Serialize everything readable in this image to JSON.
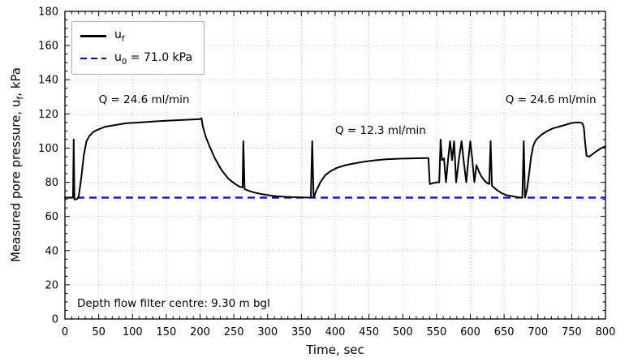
{
  "chart_data": {
    "type": "line",
    "title": "",
    "xlabel": "Time, sec",
    "ylabel": {
      "pre": "Measured pore pressure, u",
      "sub": "f",
      "post": ", kPa"
    },
    "xlim": [
      0,
      800
    ],
    "ylim": [
      0,
      180
    ],
    "x_major_step": 50,
    "x_minor_step": 10,
    "y_major_step": 20,
    "y_minor_step": 5,
    "grid": "dotted",
    "grid_color": "#b5b5b5",
    "legend": {
      "position": "top-left",
      "items": [
        {
          "pre": "u",
          "sub": "f",
          "post": ""
        },
        {
          "pre": "u",
          "sub": "0",
          "post": " = 71.0 kPa"
        }
      ]
    },
    "u0_line": {
      "value": 71.0,
      "color": "#0000ee",
      "style": "dashed"
    },
    "annotations": [
      {
        "text": "Q = 24.6 ml/min",
        "x": 50,
        "y": 128
      },
      {
        "text": "Q = 12.3 ml/min",
        "x": 400,
        "y": 110
      },
      {
        "text": "Q = 24.6 ml/min",
        "x": 652,
        "y": 128
      },
      {
        "text": "Depth flow filter centre: 9.30 m bgl",
        "x": 18,
        "y": 9
      }
    ],
    "series": [
      {
        "name": "uf",
        "color": "#000000",
        "points": [
          [
            0,
            71
          ],
          [
            8,
            71
          ],
          [
            12,
            71
          ],
          [
            13,
            105
          ],
          [
            14,
            70
          ],
          [
            17,
            70
          ],
          [
            20,
            71
          ],
          [
            24,
            82
          ],
          [
            28,
            96
          ],
          [
            32,
            104
          ],
          [
            36,
            107
          ],
          [
            42,
            109.5
          ],
          [
            50,
            111
          ],
          [
            60,
            112.5
          ],
          [
            75,
            113.5
          ],
          [
            90,
            114.5
          ],
          [
            110,
            115
          ],
          [
            130,
            115.5
          ],
          [
            150,
            116
          ],
          [
            175,
            116.5
          ],
          [
            200,
            117
          ],
          [
            202,
            117.5
          ],
          [
            204,
            113
          ],
          [
            208,
            107
          ],
          [
            214,
            101
          ],
          [
            222,
            94
          ],
          [
            232,
            87
          ],
          [
            242,
            82
          ],
          [
            252,
            79
          ],
          [
            258,
            77.5
          ],
          [
            263,
            77
          ],
          [
            264,
            104
          ],
          [
            266,
            76
          ],
          [
            272,
            75
          ],
          [
            280,
            74
          ],
          [
            292,
            73
          ],
          [
            308,
            72
          ],
          [
            325,
            71.5
          ],
          [
            345,
            71.2
          ],
          [
            364,
            71
          ],
          [
            366,
            104
          ],
          [
            368,
            71
          ],
          [
            372,
            75
          ],
          [
            378,
            80
          ],
          [
            385,
            84
          ],
          [
            393,
            86.5
          ],
          [
            403,
            88.5
          ],
          [
            415,
            90
          ],
          [
            428,
            91
          ],
          [
            442,
            92
          ],
          [
            458,
            92.8
          ],
          [
            475,
            93.4
          ],
          [
            495,
            93.8
          ],
          [
            515,
            94
          ],
          [
            535,
            94.2
          ],
          [
            538,
            94.2
          ],
          [
            540,
            79
          ],
          [
            545,
            79.5
          ],
          [
            550,
            80
          ],
          [
            554,
            80
          ],
          [
            556,
            105
          ],
          [
            558,
            93
          ],
          [
            561,
            94
          ],
          [
            564,
            80
          ],
          [
            567,
            93
          ],
          [
            570,
            104
          ],
          [
            573,
            93
          ],
          [
            576,
            104
          ],
          [
            579,
            80
          ],
          [
            583,
            93
          ],
          [
            587,
            104
          ],
          [
            590,
            93
          ],
          [
            594,
            80
          ],
          [
            597,
            93
          ],
          [
            600,
            104
          ],
          [
            603,
            93
          ],
          [
            606,
            80
          ],
          [
            609,
            90
          ],
          [
            613,
            86
          ],
          [
            617,
            83
          ],
          [
            621,
            81
          ],
          [
            625,
            79.5
          ],
          [
            628,
            79
          ],
          [
            630,
            104
          ],
          [
            632,
            78
          ],
          [
            636,
            76.5
          ],
          [
            641,
            75
          ],
          [
            647,
            73.5
          ],
          [
            653,
            72.5
          ],
          [
            660,
            72
          ],
          [
            667,
            71.5
          ],
          [
            673,
            71
          ],
          [
            677,
            71
          ],
          [
            679,
            104
          ],
          [
            681,
            71
          ],
          [
            684,
            76
          ],
          [
            687,
            85
          ],
          [
            690,
            95
          ],
          [
            693,
            101
          ],
          [
            696,
            104
          ],
          [
            700,
            106
          ],
          [
            706,
            108
          ],
          [
            714,
            110
          ],
          [
            722,
            111.5
          ],
          [
            731,
            112.5
          ],
          [
            740,
            113.5
          ],
          [
            748,
            114.5
          ],
          [
            756,
            115
          ],
          [
            762,
            115
          ],
          [
            766,
            114.5
          ],
          [
            768,
            112
          ],
          [
            770,
            103
          ],
          [
            772,
            95.5
          ],
          [
            776,
            95
          ],
          [
            781,
            96.5
          ],
          [
            788,
            98.5
          ],
          [
            794,
            100
          ],
          [
            800,
            101
          ]
        ]
      }
    ]
  }
}
